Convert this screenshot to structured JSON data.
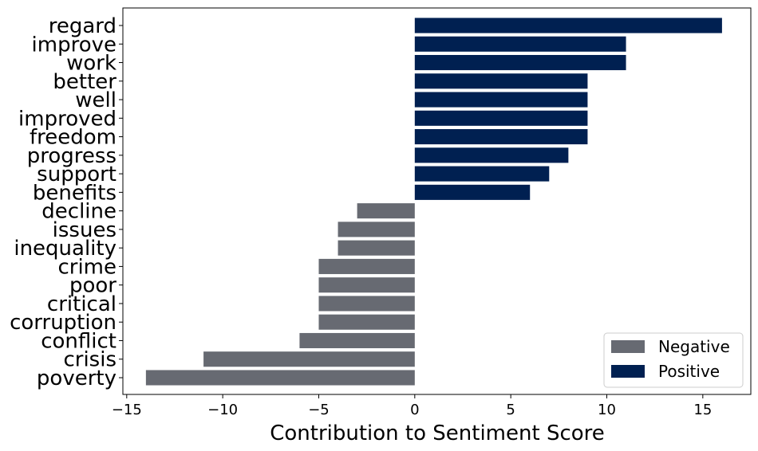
{
  "chart_data": {
    "type": "bar",
    "orientation": "horizontal",
    "title": "",
    "xlabel": "Contribution to Sentiment Score",
    "ylabel": "",
    "xlim": [
      -15.2,
      17.5
    ],
    "xticks": [
      -15,
      -10,
      -5,
      0,
      5,
      10,
      15
    ],
    "grid": false,
    "legend_position": "bottom-right",
    "categories": [
      "regard",
      "improve",
      "work",
      "better",
      "well",
      "improved",
      "freedom",
      "progress",
      "support",
      "benefits",
      "decline",
      "issues",
      "inequality",
      "crime",
      "poor",
      "critical",
      "corruption",
      "conflict",
      "crisis",
      "poverty"
    ],
    "values": [
      16,
      11,
      11,
      9,
      9,
      9,
      9,
      8,
      7,
      6,
      -3,
      -4,
      -4,
      -5,
      -5,
      -5,
      -5,
      -6,
      -11,
      -14
    ],
    "series": [
      {
        "name": "Negative",
        "color": "#676a72"
      },
      {
        "name": "Positive",
        "color": "#002051"
      }
    ]
  }
}
